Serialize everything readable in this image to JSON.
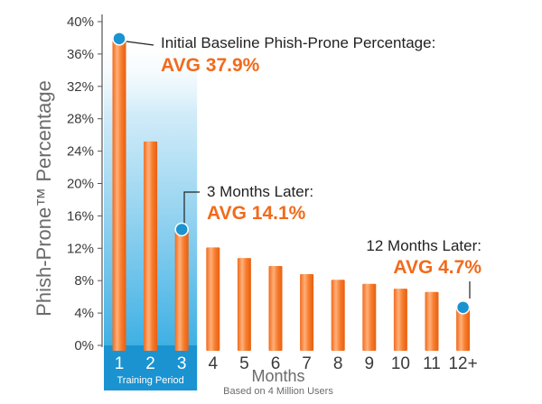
{
  "chart_data": {
    "type": "bar",
    "ylabel": "Phish-Prone™ Percentage",
    "xlabel": "Months",
    "xlabel_sub": "Based on 4 Million Users",
    "categories": [
      "1",
      "2",
      "3",
      "4",
      "5",
      "6",
      "7",
      "8",
      "9",
      "10",
      "11",
      "12+"
    ],
    "values": [
      37.9,
      25.2,
      14.1,
      12.1,
      10.8,
      9.8,
      8.8,
      8.1,
      7.6,
      7.0,
      6.6,
      4.7
    ],
    "yticks": [
      "0%",
      "4%",
      "8%",
      "12%",
      "16%",
      "20%",
      "24%",
      "28%",
      "32%",
      "36%",
      "40%"
    ],
    "ylim": [
      0,
      40
    ],
    "grid": false,
    "colors": {
      "bar": "#f26a1b",
      "bar_highlight": "#ffd0a8",
      "training_band": "#6fc4ea",
      "marker": "#1b93d1",
      "annotation_value": "#f26a1b"
    },
    "training_period": {
      "label": "Training Period",
      "categories": [
        "1",
        "2",
        "3"
      ]
    },
    "annotations": [
      {
        "category": "1",
        "title": "Initial Baseline Phish-Prone Percentage:",
        "value": "AVG 37.9%"
      },
      {
        "category": "3",
        "title": "3 Months Later:",
        "value": "AVG 14.1%"
      },
      {
        "category": "12+",
        "title": "12 Months Later:",
        "value": "AVG 4.7%"
      }
    ]
  }
}
